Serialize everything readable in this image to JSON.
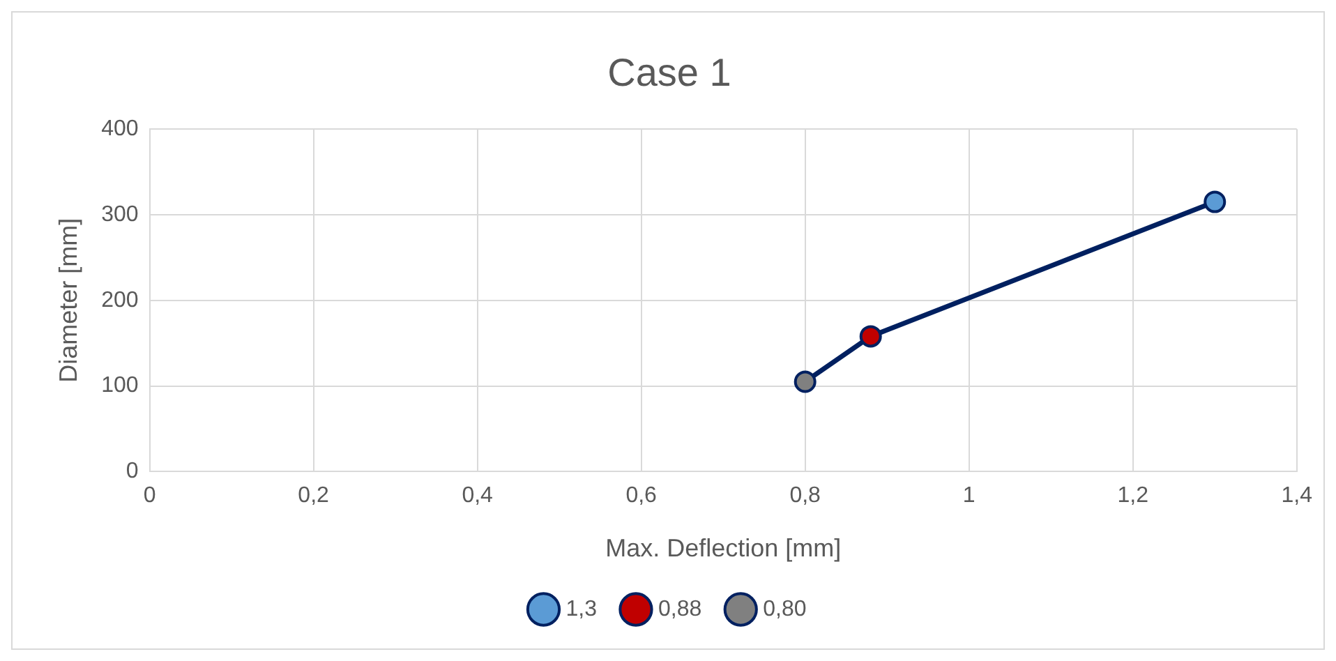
{
  "chart_data": {
    "type": "scatter",
    "title": "Case 1",
    "xlabel": "Max. Deflection [mm]",
    "ylabel": "Diameter [mm]",
    "xlim": [
      0,
      1.4
    ],
    "xticks": [
      {
        "value": 0,
        "label": "0"
      },
      {
        "value": 0.2,
        "label": "0,2"
      },
      {
        "value": 0.4,
        "label": "0,4"
      },
      {
        "value": 0.6,
        "label": "0,6"
      },
      {
        "value": 0.8,
        "label": "0,8"
      },
      {
        "value": 1,
        "label": "1"
      },
      {
        "value": 1.2,
        "label": "1,2"
      },
      {
        "value": 1.4,
        "label": "1,4"
      }
    ],
    "ylim": [
      0,
      400
    ],
    "yticks": [
      0,
      100,
      200,
      300,
      400
    ],
    "grid": true,
    "legend": "bottom",
    "marker": "circle",
    "series": [
      {
        "type": "line",
        "color": "#002060",
        "x": [
          0.8,
          0.88,
          1.3
        ],
        "values": [
          105,
          158,
          315
        ],
        "marker": "none",
        "line_style": "solid"
      },
      {
        "name": "1,3",
        "color": "#5b9bd5",
        "x": [
          1.3
        ],
        "values": [
          315
        ]
      },
      {
        "name": "0,88",
        "color": "#c00000",
        "x": [
          0.88
        ],
        "values": [
          158
        ]
      },
      {
        "name": "0,80",
        "color": "#808080",
        "x": [
          0.8
        ],
        "values": [
          105
        ]
      }
    ]
  }
}
